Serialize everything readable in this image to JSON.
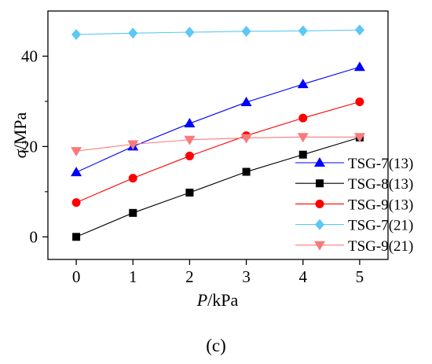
{
  "chart_data": {
    "type": "line",
    "panel_label": "(c)",
    "xlabel": {
      "var": "P",
      "unit": "/kPa"
    },
    "ylabel": {
      "var": "σ",
      "unit": "/MPa"
    },
    "x": [
      0,
      1,
      2,
      3,
      4,
      5
    ],
    "x_ticks": [
      0,
      1,
      2,
      3,
      4,
      5
    ],
    "y_ticks": [
      0,
      20,
      40
    ],
    "xlim": [
      -0.5,
      5.5
    ],
    "ylim": [
      -5,
      50
    ],
    "grid": false,
    "legend_position": "lower-right",
    "series": [
      {
        "name": "TSG-7(13)",
        "color": "#0000ff",
        "marker": "triangle-up",
        "values": [
          14.3,
          20.0,
          25.1,
          29.8,
          33.8,
          37.6
        ]
      },
      {
        "name": "TSG-8(13)",
        "color": "#000000",
        "marker": "square",
        "values": [
          0.0,
          5.3,
          9.8,
          14.4,
          18.2,
          22.0
        ]
      },
      {
        "name": "TSG-9(13)",
        "color": "#ff0000",
        "marker": "circle",
        "values": [
          7.6,
          13.0,
          17.9,
          22.4,
          26.3,
          29.9
        ]
      },
      {
        "name": "TSG-7(21)",
        "color": "#5bc8f5",
        "marker": "diamond",
        "values": [
          44.8,
          45.1,
          45.3,
          45.5,
          45.6,
          45.8
        ]
      },
      {
        "name": "TSG-9(21)",
        "color": "#f87a7a",
        "marker": "triangle-down",
        "values": [
          19.0,
          20.5,
          21.5,
          21.9,
          22.1,
          22.1
        ]
      }
    ]
  }
}
